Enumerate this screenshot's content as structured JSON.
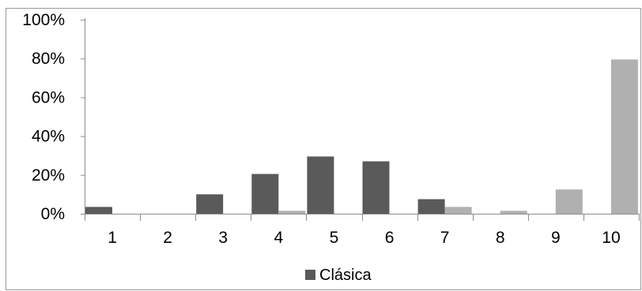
{
  "chart_data": {
    "type": "bar",
    "categories": [
      "1",
      "2",
      "3",
      "4",
      "5",
      "6",
      "7",
      "8",
      "9",
      "10"
    ],
    "series": [
      {
        "name": "Clásica",
        "color": "#5a5a5a",
        "values": [
          3.5,
          0,
          10,
          20.5,
          29.5,
          27,
          7.5,
          0,
          0,
          0
        ]
      },
      {
        "name": "",
        "color": "#b0b0b0",
        "values": [
          0,
          0,
          0,
          1.5,
          0,
          0,
          3.5,
          1.5,
          12.5,
          79.5
        ]
      }
    ],
    "y_ticks": [
      "0%",
      "20%",
      "40%",
      "60%",
      "80%",
      "100%"
    ],
    "ylim": [
      0,
      100
    ],
    "grid": false,
    "legend": {
      "position": "bottom",
      "entries": [
        "Clásica"
      ]
    }
  }
}
